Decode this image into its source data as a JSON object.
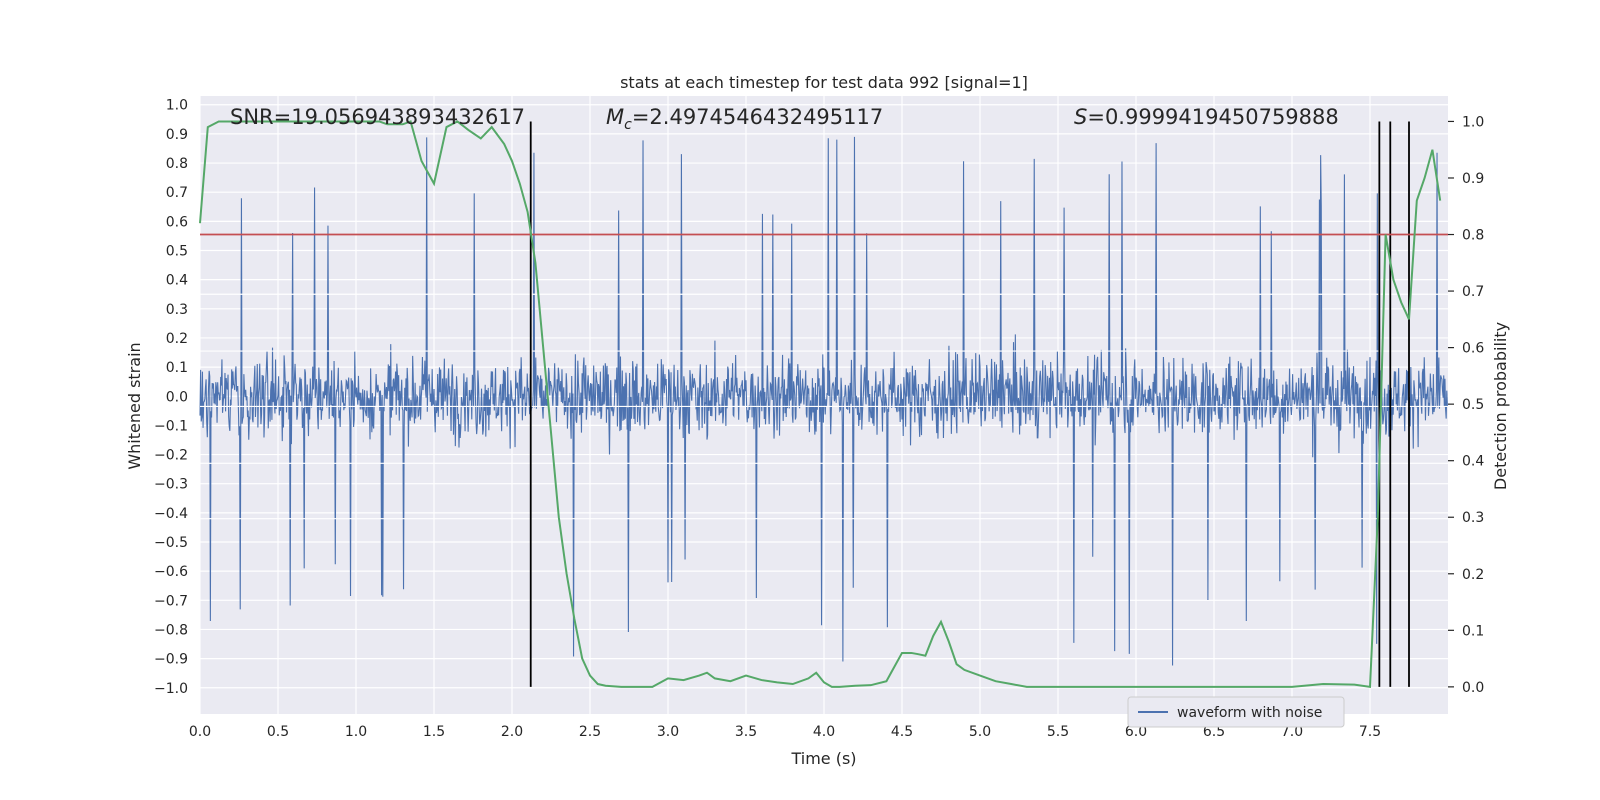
{
  "chart_data": {
    "type": "line",
    "title": "stats at each timestep for test data 992 [signal=1]",
    "xlabel": "Time (s)",
    "ylabel": "Whitened strain",
    "y2label": "Detection probability",
    "xlim": [
      0.0,
      8.0
    ],
    "ylim": [
      -1.09,
      1.03
    ],
    "y2lim": [
      -0.048,
      1.045
    ],
    "xticks": [
      "0.0",
      "0.5",
      "1.0",
      "1.5",
      "2.0",
      "2.5",
      "3.0",
      "3.5",
      "4.0",
      "4.5",
      "5.0",
      "5.5",
      "6.0",
      "6.5",
      "7.0",
      "7.5"
    ],
    "yticks": [
      "1.0",
      "0.9",
      "0.8",
      "0.7",
      "0.6",
      "0.5",
      "0.4",
      "0.3",
      "0.2",
      "0.1",
      "0.0",
      "−0.1",
      "−0.2",
      "−0.3",
      "−0.4",
      "−0.5",
      "−0.6",
      "−0.7",
      "−0.8",
      "−0.9",
      "−1.0"
    ],
    "y2ticks": [
      "1.0",
      "0.9",
      "0.8",
      "0.7",
      "0.6",
      "0.5",
      "0.4",
      "0.3",
      "0.2",
      "0.1",
      "0.0"
    ],
    "grid": true,
    "legend": {
      "placement": "lower-right",
      "entries": [
        "waveform with noise"
      ]
    },
    "annotations": {
      "snr": "SNR=19.056943893432617",
      "mc_symbol": "M",
      "mc_sub": "c",
      "mc_value": "=2.4974546432495117",
      "s_symbol": "S",
      "s_value": "=0.9999419450759888"
    },
    "series": [
      {
        "name": "waveform with noise",
        "axis": "left",
        "color": "#4c72b0",
        "kind": "dense-noise",
        "sample_rate_hz": 256,
        "duration_s": 8.0,
        "typical_range": [
          -0.45,
          0.45
        ],
        "extreme_range": [
          -1.0,
          0.92
        ]
      },
      {
        "name": "detection probability",
        "axis": "right",
        "color": "#55a868",
        "x": [
          0.0,
          0.05,
          0.12,
          0.2,
          0.3,
          0.5,
          0.7,
          0.9,
          1.0,
          1.1,
          1.15,
          1.2,
          1.3,
          1.35,
          1.42,
          1.5,
          1.58,
          1.65,
          1.72,
          1.8,
          1.87,
          1.95,
          2.0,
          2.05,
          2.1,
          2.15,
          2.2,
          2.25,
          2.3,
          2.35,
          2.4,
          2.45,
          2.5,
          2.55,
          2.6,
          2.7,
          2.8,
          2.9,
          3.0,
          3.1,
          3.2,
          3.25,
          3.3,
          3.4,
          3.5,
          3.6,
          3.7,
          3.8,
          3.9,
          3.95,
          4.0,
          4.05,
          4.1,
          4.2,
          4.3,
          4.4,
          4.5,
          4.56,
          4.6,
          4.65,
          4.7,
          4.75,
          4.8,
          4.85,
          4.9,
          5.0,
          5.1,
          5.2,
          5.3,
          5.5,
          6.0,
          6.5,
          7.0,
          7.2,
          7.4,
          7.5,
          7.55,
          7.6,
          7.65,
          7.7,
          7.75,
          7.8,
          7.85,
          7.9,
          7.95
        ],
        "values": [
          0.82,
          0.99,
          1.0,
          1.0,
          1.0,
          1.0,
          1.0,
          1.0,
          1.0,
          1.0,
          1.0,
          0.995,
          0.995,
          1.0,
          0.93,
          0.89,
          0.99,
          1.0,
          0.985,
          0.97,
          0.99,
          0.96,
          0.93,
          0.89,
          0.84,
          0.75,
          0.6,
          0.45,
          0.3,
          0.2,
          0.12,
          0.05,
          0.02,
          0.005,
          0.002,
          0.0,
          0.0,
          0.0,
          0.015,
          0.012,
          0.02,
          0.025,
          0.015,
          0.01,
          0.02,
          0.012,
          0.008,
          0.005,
          0.015,
          0.025,
          0.008,
          0.0,
          0.0,
          0.002,
          0.003,
          0.01,
          0.06,
          0.06,
          0.058,
          0.055,
          0.09,
          0.115,
          0.08,
          0.04,
          0.03,
          0.02,
          0.01,
          0.005,
          0.0,
          0.0,
          0.0,
          0.0,
          0.0,
          0.005,
          0.004,
          0.0,
          0.3,
          0.8,
          0.72,
          0.68,
          0.65,
          0.86,
          0.9,
          0.95,
          0.86
        ]
      }
    ],
    "threshold": {
      "axis": "right",
      "value": 0.8,
      "color": "#c44e52"
    },
    "vertical_markers": {
      "x": [
        2.12,
        7.56,
        7.63,
        7.75
      ],
      "y2_range": [
        0.0,
        1.0
      ],
      "color": "#000000"
    }
  }
}
